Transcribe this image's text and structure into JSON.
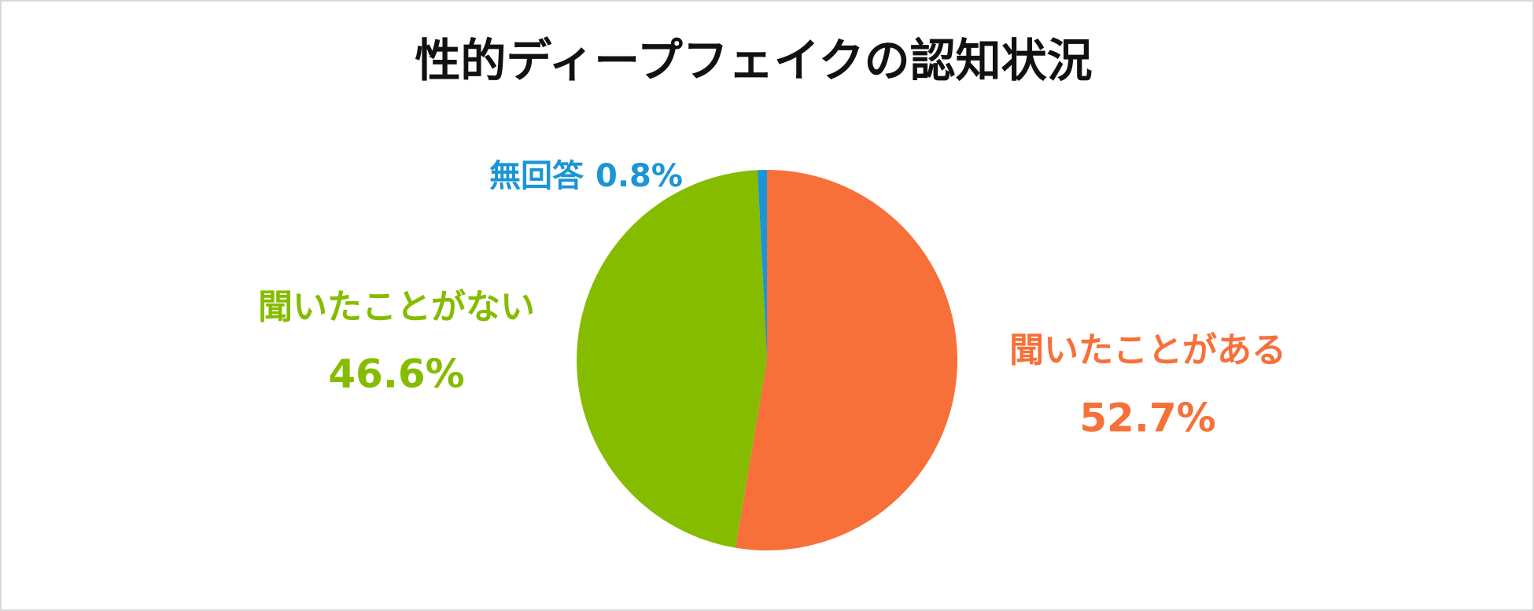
{
  "chart_data": {
    "type": "pie",
    "title": "性的ディープフェイクの認知状況",
    "categories": [
      "聞いたことがある",
      "聞いたことがない",
      "無回答"
    ],
    "values": [
      52.7,
      46.6,
      0.8
    ],
    "value_labels": [
      "52.7%",
      "46.6%",
      "0.8%"
    ],
    "colors": [
      "#f7703a",
      "#86bc00",
      "#1b95d4"
    ]
  }
}
